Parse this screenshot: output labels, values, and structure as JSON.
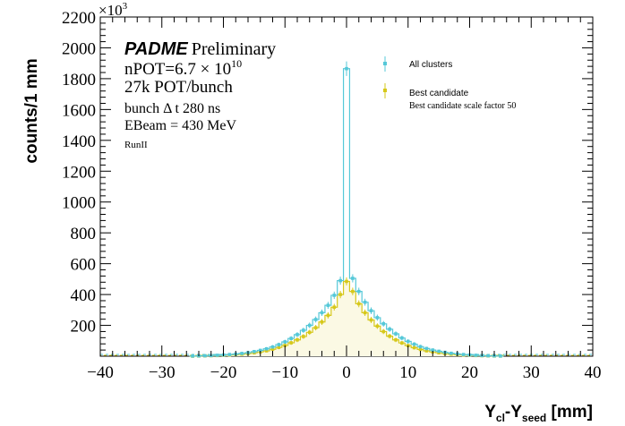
{
  "chart_data": {
    "type": "histogram",
    "exponent_label": "×10",
    "exponent_power": "3",
    "ylabel": "counts/1 mm",
    "xlabel_parts": {
      "y": "Y",
      "sub1": "cl",
      "dash": "-Y",
      "sub2": "seed",
      "unit": " [mm]"
    },
    "xlim": [
      -40,
      40
    ],
    "ylim": [
      0,
      2200
    ],
    "x_ticks": [
      "−40",
      "−30",
      "−20",
      "−10",
      "0",
      "10",
      "20",
      "30",
      "40"
    ],
    "x_tick_values": [
      -40,
      -30,
      -20,
      -10,
      0,
      10,
      20,
      30,
      40
    ],
    "y_ticks": [
      "200",
      "400",
      "600",
      "800",
      "1000",
      "1200",
      "1400",
      "1600",
      "1800",
      "2000",
      "2200"
    ],
    "y_tick_values": [
      200,
      400,
      600,
      800,
      1000,
      1200,
      1400,
      1600,
      1800,
      2000,
      2200
    ],
    "annotations": {
      "brand": "PADME",
      "brand_suffix": "Preliminary",
      "npot_text": "nPOT=6.7 × 10",
      "npot_exp": "10",
      "pot_bunch": "27k POT/bunch",
      "bunch_dt": "bunch Δ t 280 ns",
      "ebeam": "EBeam = 430 MeV",
      "run": "RunII"
    },
    "legend": {
      "position": "top-right",
      "entries": [
        {
          "label": "All clusters",
          "color": "#55c8d8"
        },
        {
          "label": "Best candidate",
          "color": "#d6c81a"
        },
        {
          "label": "Best candidate scale factor 50",
          "color": ""
        }
      ]
    },
    "series": [
      {
        "name": "All clusters",
        "color": "#55c8d8",
        "centers": [
          -25,
          -24,
          -23,
          -22,
          -21,
          -20,
          -19,
          -18,
          -17,
          -16,
          -15,
          -14,
          -13,
          -12,
          -11,
          -10,
          -9,
          -8,
          -7,
          -6,
          -5,
          -4,
          -3,
          -2,
          -1,
          0,
          1,
          2,
          3,
          4,
          5,
          6,
          7,
          8,
          9,
          10,
          11,
          12,
          13,
          14,
          15,
          16,
          17,
          18,
          19,
          20,
          21,
          22,
          23,
          24,
          25
        ],
        "values": [
          1,
          2,
          3,
          4,
          6,
          8,
          11,
          14,
          18,
          23,
          30,
          38,
          48,
          60,
          75,
          93,
          115,
          140,
          168,
          200,
          238,
          282,
          330,
          395,
          490,
          1865,
          505,
          420,
          350,
          295,
          250,
          210,
          175,
          145,
          118,
          96,
          78,
          62,
          50,
          40,
          32,
          25,
          19,
          15,
          11,
          8,
          6,
          4,
          3,
          2,
          1
        ]
      },
      {
        "name": "Best candidate",
        "color": "#d6c81a",
        "centers": [
          -25,
          -24,
          -23,
          -22,
          -21,
          -20,
          -19,
          -18,
          -17,
          -16,
          -15,
          -14,
          -13,
          -12,
          -11,
          -10,
          -9,
          -8,
          -7,
          -6,
          -5,
          -4,
          -3,
          -2,
          -1,
          0,
          1,
          2,
          3,
          4,
          5,
          6,
          7,
          8,
          9,
          10,
          11,
          12,
          13,
          14,
          15,
          16,
          17,
          18,
          19,
          20,
          21,
          22,
          23,
          24,
          25
        ],
        "values": [
          0,
          1,
          2,
          3,
          4,
          6,
          8,
          10,
          13,
          17,
          22,
          28,
          35,
          45,
          57,
          70,
          87,
          106,
          128,
          155,
          185,
          222,
          265,
          318,
          400,
          485,
          420,
          340,
          282,
          235,
          195,
          160,
          130,
          106,
          86,
          69,
          55,
          44,
          35,
          28,
          22,
          17,
          13,
          10,
          8,
          6,
          4,
          3,
          2,
          1,
          1
        ]
      }
    ]
  }
}
